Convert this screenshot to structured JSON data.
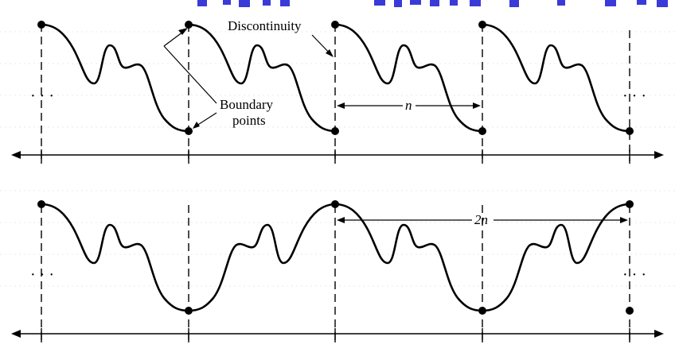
{
  "labels": {
    "discontinuity": "Discontinuity",
    "boundary_line1": "Boundary",
    "boundary_line2": "points",
    "period_top": "n",
    "period_bottom": "2n",
    "ellipsis": "· · ·"
  },
  "colors": {
    "stroke": "#000000",
    "background": "#ffffff",
    "header_blue": "#3a3ad8"
  }
}
